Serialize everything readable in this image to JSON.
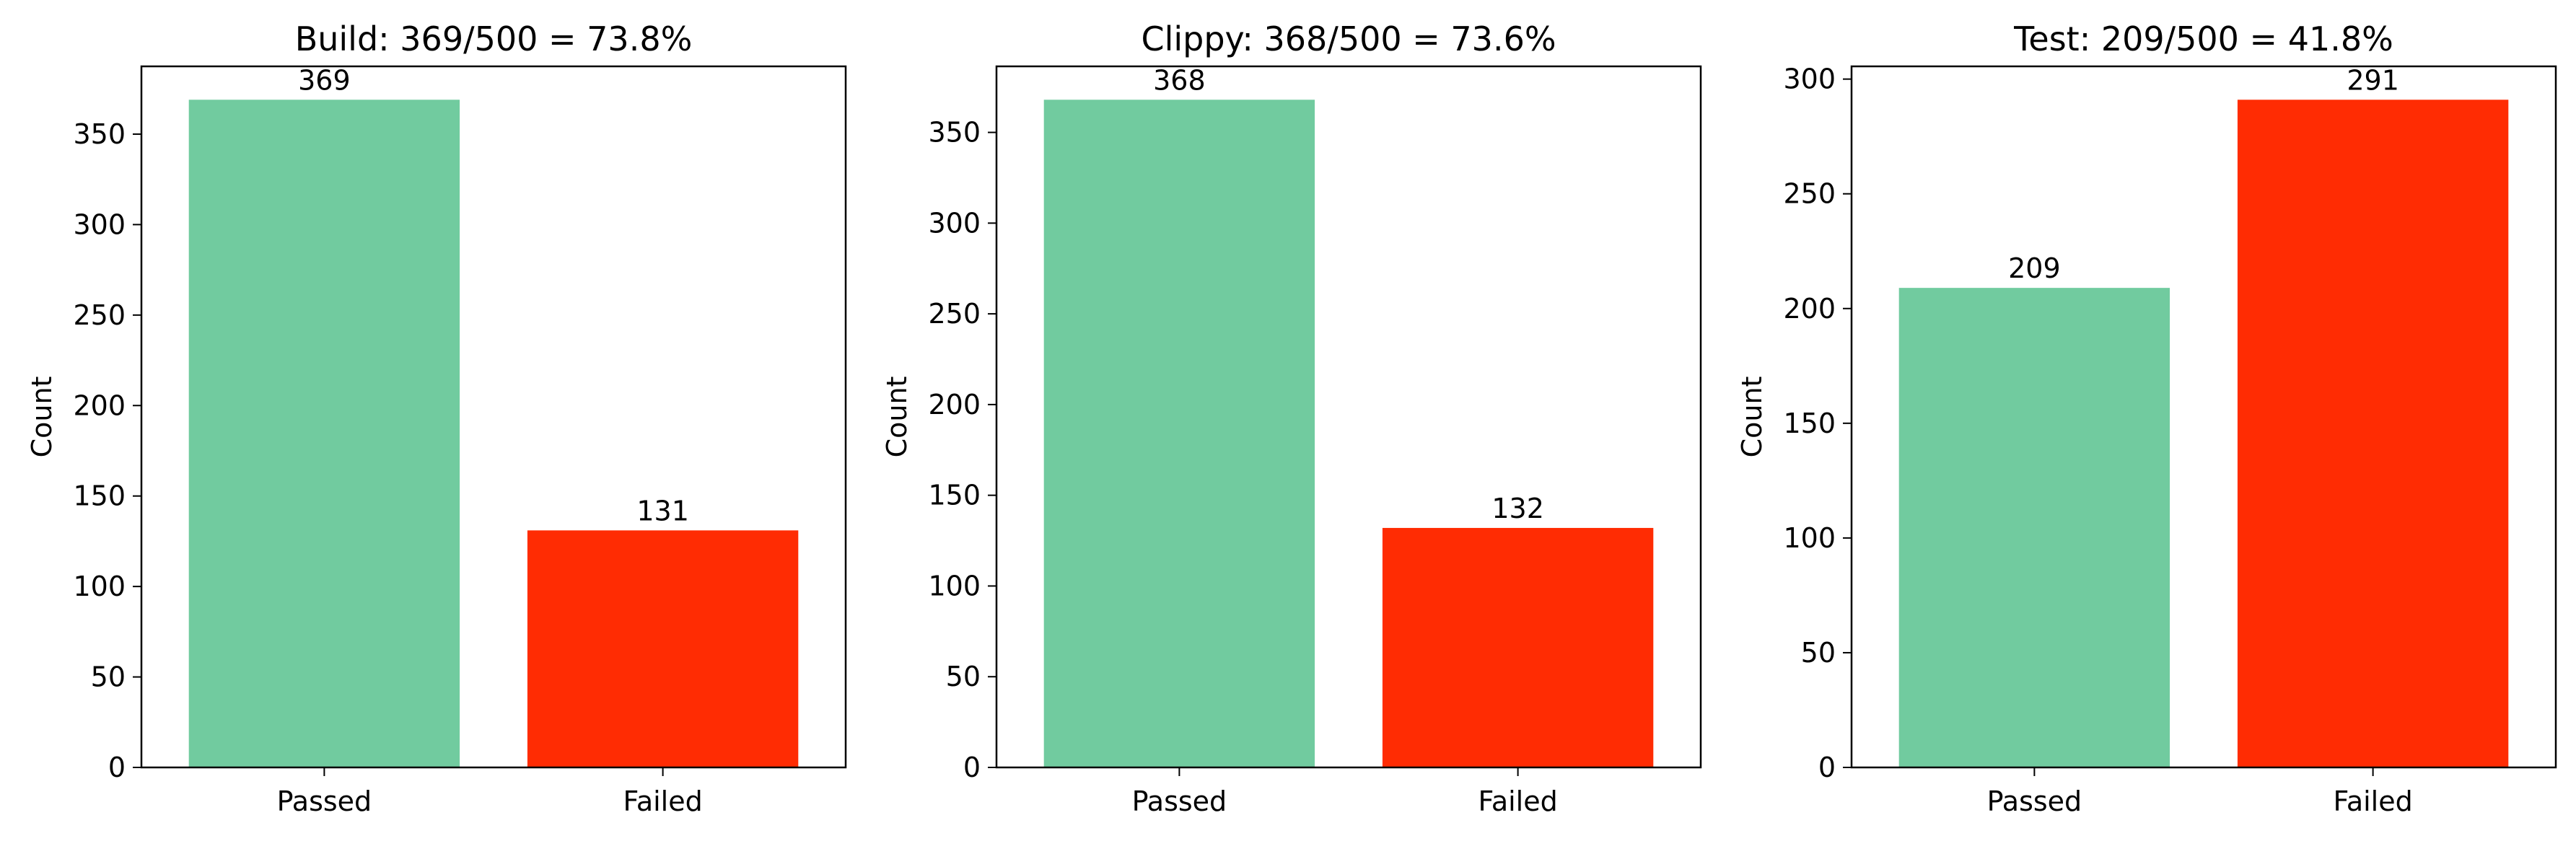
{
  "chart_data": [
    {
      "type": "bar",
      "title": "Build: 369/500 = 73.8%",
      "xlabel": "",
      "ylabel": "Count",
      "categories": [
        "Passed",
        "Failed"
      ],
      "values": [
        369,
        131
      ],
      "data_labels": [
        "369",
        "131"
      ],
      "bar_colors": [
        "#71cb9f",
        "#ff2c03"
      ],
      "ylim": [
        0,
        387.45
      ],
      "yticks": [
        0,
        50,
        100,
        150,
        200,
        250,
        300,
        350
      ],
      "ytick_labels": [
        "0",
        "50",
        "100",
        "150",
        "200",
        "250",
        "300",
        "350"
      ],
      "grid": false,
      "legend": "none"
    },
    {
      "type": "bar",
      "title": "Clippy: 368/500 = 73.6%",
      "xlabel": "",
      "ylabel": "Count",
      "categories": [
        "Passed",
        "Failed"
      ],
      "values": [
        368,
        132
      ],
      "data_labels": [
        "368",
        "132"
      ],
      "bar_colors": [
        "#71cb9f",
        "#ff2c03"
      ],
      "ylim": [
        0,
        386.4
      ],
      "yticks": [
        0,
        50,
        100,
        150,
        200,
        250,
        300,
        350
      ],
      "ytick_labels": [
        "0",
        "50",
        "100",
        "150",
        "200",
        "250",
        "300",
        "350"
      ],
      "grid": false,
      "legend": "none"
    },
    {
      "type": "bar",
      "title": "Test: 209/500 = 41.8%",
      "xlabel": "",
      "ylabel": "Count",
      "categories": [
        "Passed",
        "Failed"
      ],
      "values": [
        209,
        291
      ],
      "data_labels": [
        "209",
        "291"
      ],
      "bar_colors": [
        "#71cb9f",
        "#ff2c03"
      ],
      "ylim": [
        0,
        305.55
      ],
      "yticks": [
        0,
        50,
        100,
        150,
        200,
        250,
        300
      ],
      "ytick_labels": [
        "0",
        "50",
        "100",
        "150",
        "200",
        "250",
        "300"
      ],
      "grid": false,
      "legend": "none"
    }
  ]
}
